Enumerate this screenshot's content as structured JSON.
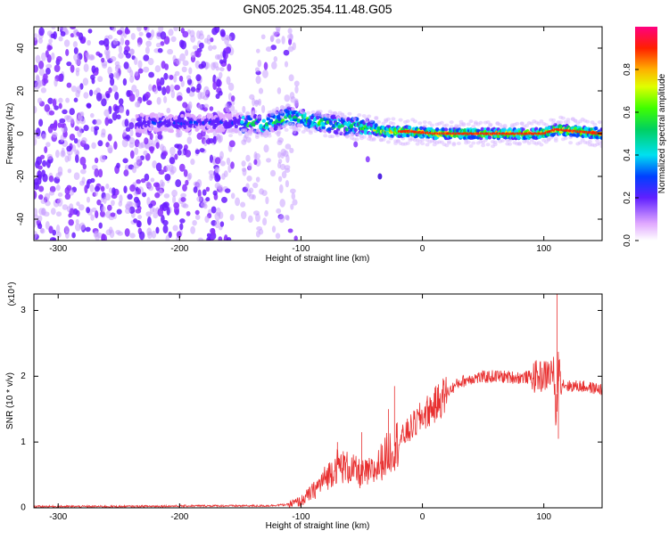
{
  "figure": {
    "title": "GN05.2025.354.11.48.G05"
  },
  "chart_data": [
    {
      "type": "heatmap",
      "xlabel": "Height of straight line (km)",
      "ylabel": "Frequency (Hz)",
      "xlim": [
        -320,
        148
      ],
      "ylim": [
        -50,
        50
      ],
      "x_ticks": [
        -300,
        -200,
        -100,
        0,
        100
      ],
      "y_ticks": [
        -40,
        -20,
        0,
        20,
        40
      ],
      "colorbar": {
        "label": "Normalized spectral amplitude",
        "range": [
          0,
          1
        ],
        "ticks": [
          0.0,
          0.2,
          0.4,
          0.6,
          0.8
        ],
        "tick_labels": [
          "0.0",
          "0.2",
          "0.4",
          "0.6",
          "0.8"
        ]
      },
      "ridge": [
        {
          "x": -150,
          "f": 5
        },
        {
          "x": -130,
          "f": 4
        },
        {
          "x": -110,
          "f": 8
        },
        {
          "x": -90,
          "f": 6
        },
        {
          "x": -70,
          "f": 4
        },
        {
          "x": -50,
          "f": 3
        },
        {
          "x": -30,
          "f": 1
        },
        {
          "x": -10,
          "f": 1
        },
        {
          "x": 10,
          "f": 0
        },
        {
          "x": 50,
          "f": 0
        },
        {
          "x": 100,
          "f": 0
        },
        {
          "x": 110,
          "f": 2
        },
        {
          "x": 148,
          "f": 0
        }
      ],
      "branch": [
        {
          "x": -55,
          "f": -5
        },
        {
          "x": -45,
          "f": -12
        },
        {
          "x": -35,
          "f": -20
        }
      ]
    },
    {
      "type": "line",
      "xlabel": "Height of straight line (km)",
      "ylabel": "SNR (10 * v/v)",
      "y_multiplier": "(x10⁴)",
      "xlim": [
        -320,
        148
      ],
      "ylim": [
        0,
        3.25
      ],
      "x_ticks": [
        -300,
        -200,
        -100,
        0,
        100
      ],
      "y_ticks": [
        0,
        1,
        2,
        3
      ],
      "series": [
        {
          "color": "#e83030",
          "x": [
            -320,
            -250,
            -180,
            -130,
            -110,
            -100,
            -90,
            -80,
            -70,
            -60,
            -50,
            -40,
            -30,
            -20,
            -10,
            0,
            10,
            20,
            30,
            40,
            60,
            80,
            100,
            105,
            108,
            110,
            112,
            115,
            120,
            130,
            148
          ],
          "y": [
            0.02,
            0.02,
            0.03,
            0.03,
            0.05,
            0.1,
            0.25,
            0.45,
            0.65,
            0.6,
            0.5,
            0.55,
            0.8,
            1.0,
            1.2,
            1.4,
            1.55,
            1.75,
            1.9,
            1.97,
            2.0,
            1.98,
            2.0,
            2.05,
            2.1,
            1.3,
            2.2,
            1.9,
            1.85,
            1.85,
            1.8
          ]
        }
      ],
      "spikes": [
        {
          "x": -70,
          "y": 1.0
        },
        {
          "x": -50,
          "y": 1.15
        },
        {
          "x": -28,
          "y": 1.5
        },
        {
          "x": -23,
          "y": 1.85
        },
        {
          "x": 111,
          "y": 3.25
        },
        {
          "x": 112,
          "y": 1.05
        }
      ]
    }
  ]
}
